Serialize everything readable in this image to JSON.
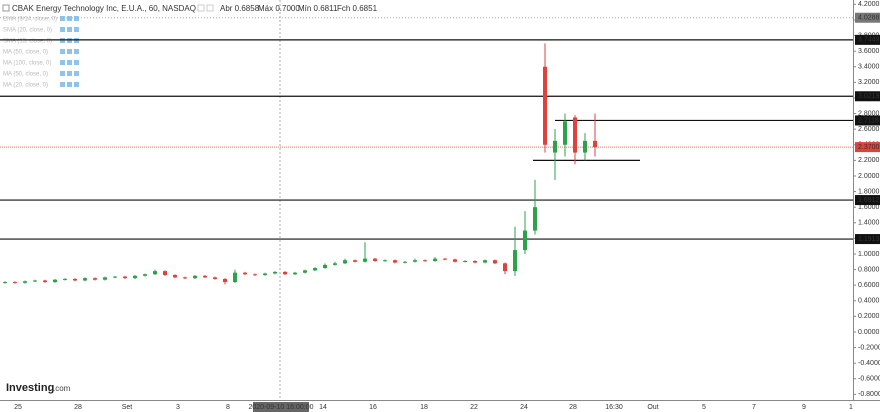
{
  "chart_data": {
    "type": "candlestick",
    "title": "CBAK Energy Technology Inc, E.U.A., 60, NASDAQ",
    "ohlc_legend": [
      "Abr 0.6858",
      "Máx 0.7000",
      "Mín 0.6811",
      "Fch 0.6851"
    ],
    "indicators": [
      "EMA (9/14, close, 0)",
      "SMA (20, close, 0)",
      "SMA (13, close, 0)",
      "MA (50, close, 0)",
      "MA (100, close, 0)",
      "MA (50, close, 0)",
      "MA (20, close, 0)"
    ],
    "up_color": "#2ca24b",
    "down_color": "#e0413c",
    "open": [
      0.63,
      0.64,
      0.63,
      0.65,
      0.66,
      0.64,
      0.67,
      0.68,
      0.66,
      0.69,
      0.67,
      0.7,
      0.71,
      0.69,
      0.72,
      0.74,
      0.78,
      0.73,
      0.7,
      0.69,
      0.72,
      0.7,
      0.68,
      0.64,
      0.76,
      0.74,
      0.73,
      0.75,
      0.77,
      0.74,
      0.76,
      0.79,
      0.82,
      0.86,
      0.88,
      0.92,
      0.9,
      0.94,
      0.91,
      0.92,
      0.89,
      0.9,
      0.92,
      0.91,
      0.94,
      0.93,
      0.9,
      0.91,
      0.89,
      0.92,
      0.88,
      0.78,
      1.05,
      1.3,
      3.4,
      2.3,
      2.4,
      2.75,
      2.3,
      2.45
    ],
    "high": [
      0.65,
      0.65,
      0.66,
      0.67,
      0.67,
      0.68,
      0.69,
      0.69,
      0.7,
      0.7,
      0.71,
      0.72,
      0.72,
      0.73,
      0.75,
      0.8,
      0.79,
      0.74,
      0.71,
      0.73,
      0.73,
      0.71,
      0.69,
      0.8,
      0.77,
      0.75,
      0.76,
      0.78,
      0.78,
      0.77,
      0.8,
      0.83,
      0.88,
      0.9,
      0.94,
      0.93,
      1.15,
      0.95,
      0.93,
      0.93,
      0.91,
      0.94,
      0.93,
      0.96,
      0.95,
      0.94,
      0.92,
      0.92,
      0.93,
      0.93,
      0.89,
      1.35,
      1.55,
      1.95,
      3.7,
      2.6,
      2.8,
      2.78,
      2.55,
      2.8
    ],
    "low": [
      0.62,
      0.62,
      0.62,
      0.64,
      0.63,
      0.63,
      0.66,
      0.65,
      0.65,
      0.66,
      0.66,
      0.69,
      0.68,
      0.68,
      0.71,
      0.73,
      0.72,
      0.69,
      0.68,
      0.68,
      0.69,
      0.67,
      0.61,
      0.63,
      0.73,
      0.72,
      0.72,
      0.74,
      0.73,
      0.73,
      0.75,
      0.78,
      0.81,
      0.85,
      0.87,
      0.89,
      0.89,
      0.9,
      0.9,
      0.88,
      0.88,
      0.89,
      0.9,
      0.9,
      0.92,
      0.89,
      0.89,
      0.88,
      0.88,
      0.87,
      0.74,
      0.72,
      1.0,
      1.25,
      2.3,
      1.95,
      2.25,
      2.15,
      2.2,
      2.25
    ],
    "close": [
      0.64,
      0.63,
      0.65,
      0.66,
      0.64,
      0.67,
      0.68,
      0.66,
      0.69,
      0.67,
      0.7,
      0.71,
      0.69,
      0.72,
      0.74,
      0.78,
      0.73,
      0.7,
      0.69,
      0.72,
      0.7,
      0.68,
      0.64,
      0.76,
      0.74,
      0.73,
      0.75,
      0.77,
      0.74,
      0.76,
      0.79,
      0.82,
      0.86,
      0.88,
      0.92,
      0.9,
      0.94,
      0.91,
      0.92,
      0.89,
      0.9,
      0.92,
      0.91,
      0.94,
      0.93,
      0.9,
      0.91,
      0.89,
      0.92,
      0.88,
      0.78,
      1.05,
      1.3,
      1.6,
      2.4,
      2.45,
      2.7,
      2.3,
      2.45,
      2.37
    ],
    "ylim": [
      -0.872,
      4.256
    ],
    "yticks": [
      {
        "value": -0.8,
        "label": "-0.8000"
      },
      {
        "value": -0.6,
        "label": "-0.6000"
      },
      {
        "value": -0.4,
        "label": "-0.4000"
      },
      {
        "value": -0.2,
        "label": "-0.2000"
      },
      {
        "value": 0,
        "label": "0.0000"
      },
      {
        "value": 0.2,
        "label": "0.2000"
      },
      {
        "value": 0.4,
        "label": "0.4000"
      },
      {
        "value": 0.6,
        "label": "0.6000"
      },
      {
        "value": 0.8,
        "label": "0.8000"
      },
      {
        "value": 1.0,
        "label": "1.0000"
      },
      {
        "value": 1.2,
        "label": "1.2000"
      },
      {
        "value": 1.4,
        "label": "1.4000"
      },
      {
        "value": 1.6,
        "label": "1.6000"
      },
      {
        "value": 1.8,
        "label": "1.8000"
      },
      {
        "value": 2.0,
        "label": "2.0000"
      },
      {
        "value": 2.2,
        "label": "2.2000"
      },
      {
        "value": 2.4,
        "label": "2.4000"
      },
      {
        "value": 2.6,
        "label": "2.6000"
      },
      {
        "value": 2.8,
        "label": "2.8000"
      },
      {
        "value": 3.0,
        "label": "3.0000"
      },
      {
        "value": 3.2,
        "label": "3.2000"
      },
      {
        "value": 3.4,
        "label": "3.4000"
      },
      {
        "value": 3.6,
        "label": "3.6000"
      },
      {
        "value": 3.8,
        "label": "3.8000"
      },
      {
        "value": 4.0,
        "label": "4.0000"
      },
      {
        "value": 4.2,
        "label": "4.2000"
      }
    ],
    "price_lines": {
      "values": [
        3.7449,
        3.0219,
        2.7118,
        1.6912,
        1.1913
      ],
      "value_labels": [
        "3.7449",
        "3.0219",
        "2.7118",
        "1.6912",
        "1.1913"
      ]
    },
    "last_price": {
      "value": 2.37,
      "label": "2.3700",
      "color": "#e0413c"
    },
    "support_line": 2.2,
    "crosshair": {
      "value": 4.0288,
      "label": "4.0288",
      "time": "2020-09-10 16:00:00"
    },
    "x_labels": [
      "25",
      "28",
      "Set",
      "3",
      "8",
      "14",
      "16",
      "18",
      "22",
      "24",
      "28",
      "16:30",
      "Out",
      "5",
      "7",
      "9",
      "1"
    ],
    "watermark": {
      "brand": "Investing",
      "suffix": ".com"
    }
  }
}
